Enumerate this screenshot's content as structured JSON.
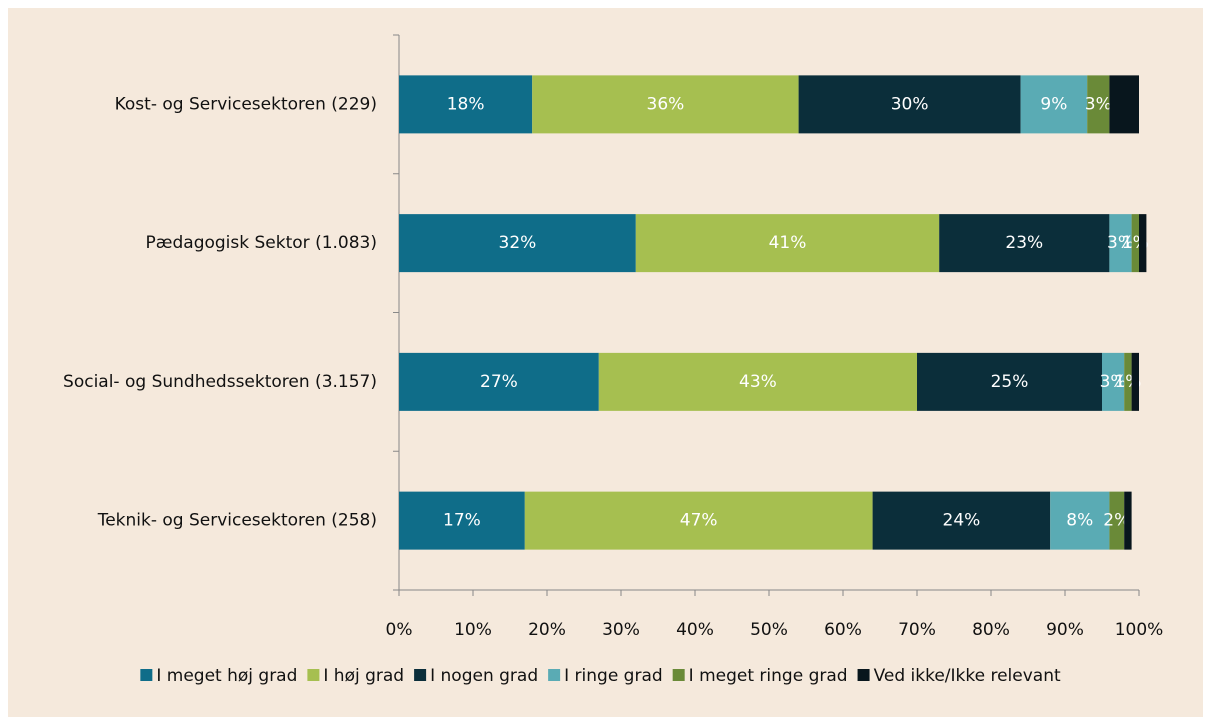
{
  "chart_data": {
    "type": "stacked_barh",
    "categories": [
      "Kost- og Servicesektoren (229)",
      "Pædagogisk Sektor (1.083)",
      "Social- og Sundhedssektoren (3.157)",
      "Teknik- og Servicesektoren (258)"
    ],
    "series": [
      {
        "name": "I meget høj grad",
        "color": "#0f6d89",
        "values": [
          18,
          32,
          27,
          17
        ],
        "value_labels": [
          "18%",
          "32%",
          "27%",
          "17%"
        ]
      },
      {
        "name": "I høj grad",
        "color": "#a6bf50",
        "values": [
          36,
          41,
          43,
          47
        ],
        "value_labels": [
          "36%",
          "41%",
          "43%",
          "47%"
        ]
      },
      {
        "name": "I nogen grad",
        "color": "#0b2e3a",
        "values": [
          30,
          23,
          25,
          24
        ],
        "value_labels": [
          "30%",
          "23%",
          "25%",
          "24%"
        ]
      },
      {
        "name": "I ringe grad",
        "color": "#5aabb4",
        "values": [
          9,
          3,
          3,
          8
        ],
        "value_labels": [
          "9%",
          "3%",
          "3%",
          "8%"
        ]
      },
      {
        "name": "I meget ringe grad",
        "color": "#6a8a38",
        "values": [
          3,
          1,
          1,
          2
        ],
        "value_labels": [
          "3%",
          "1%",
          "1%",
          "2%"
        ]
      },
      {
        "name": "Ved ikke/Ikke relevant",
        "color": "#08161d",
        "values": [
          4,
          1,
          1,
          1
        ],
        "value_labels": [
          null,
          null,
          null,
          null
        ]
      }
    ],
    "xlim": [
      0,
      100
    ],
    "xticks": [
      {
        "value": 0,
        "label": "0%"
      },
      {
        "value": 10,
        "label": "10%"
      },
      {
        "value": 20,
        "label": "20%"
      },
      {
        "value": 30,
        "label": "30%"
      },
      {
        "value": 40,
        "label": "40%"
      },
      {
        "value": 50,
        "label": "50%"
      },
      {
        "value": 60,
        "label": "60%"
      },
      {
        "value": 70,
        "label": "70%"
      },
      {
        "value": 80,
        "label": "80%"
      },
      {
        "value": 90,
        "label": "90%"
      },
      {
        "value": 100,
        "label": "100%"
      }
    ],
    "legend": "bottom"
  }
}
